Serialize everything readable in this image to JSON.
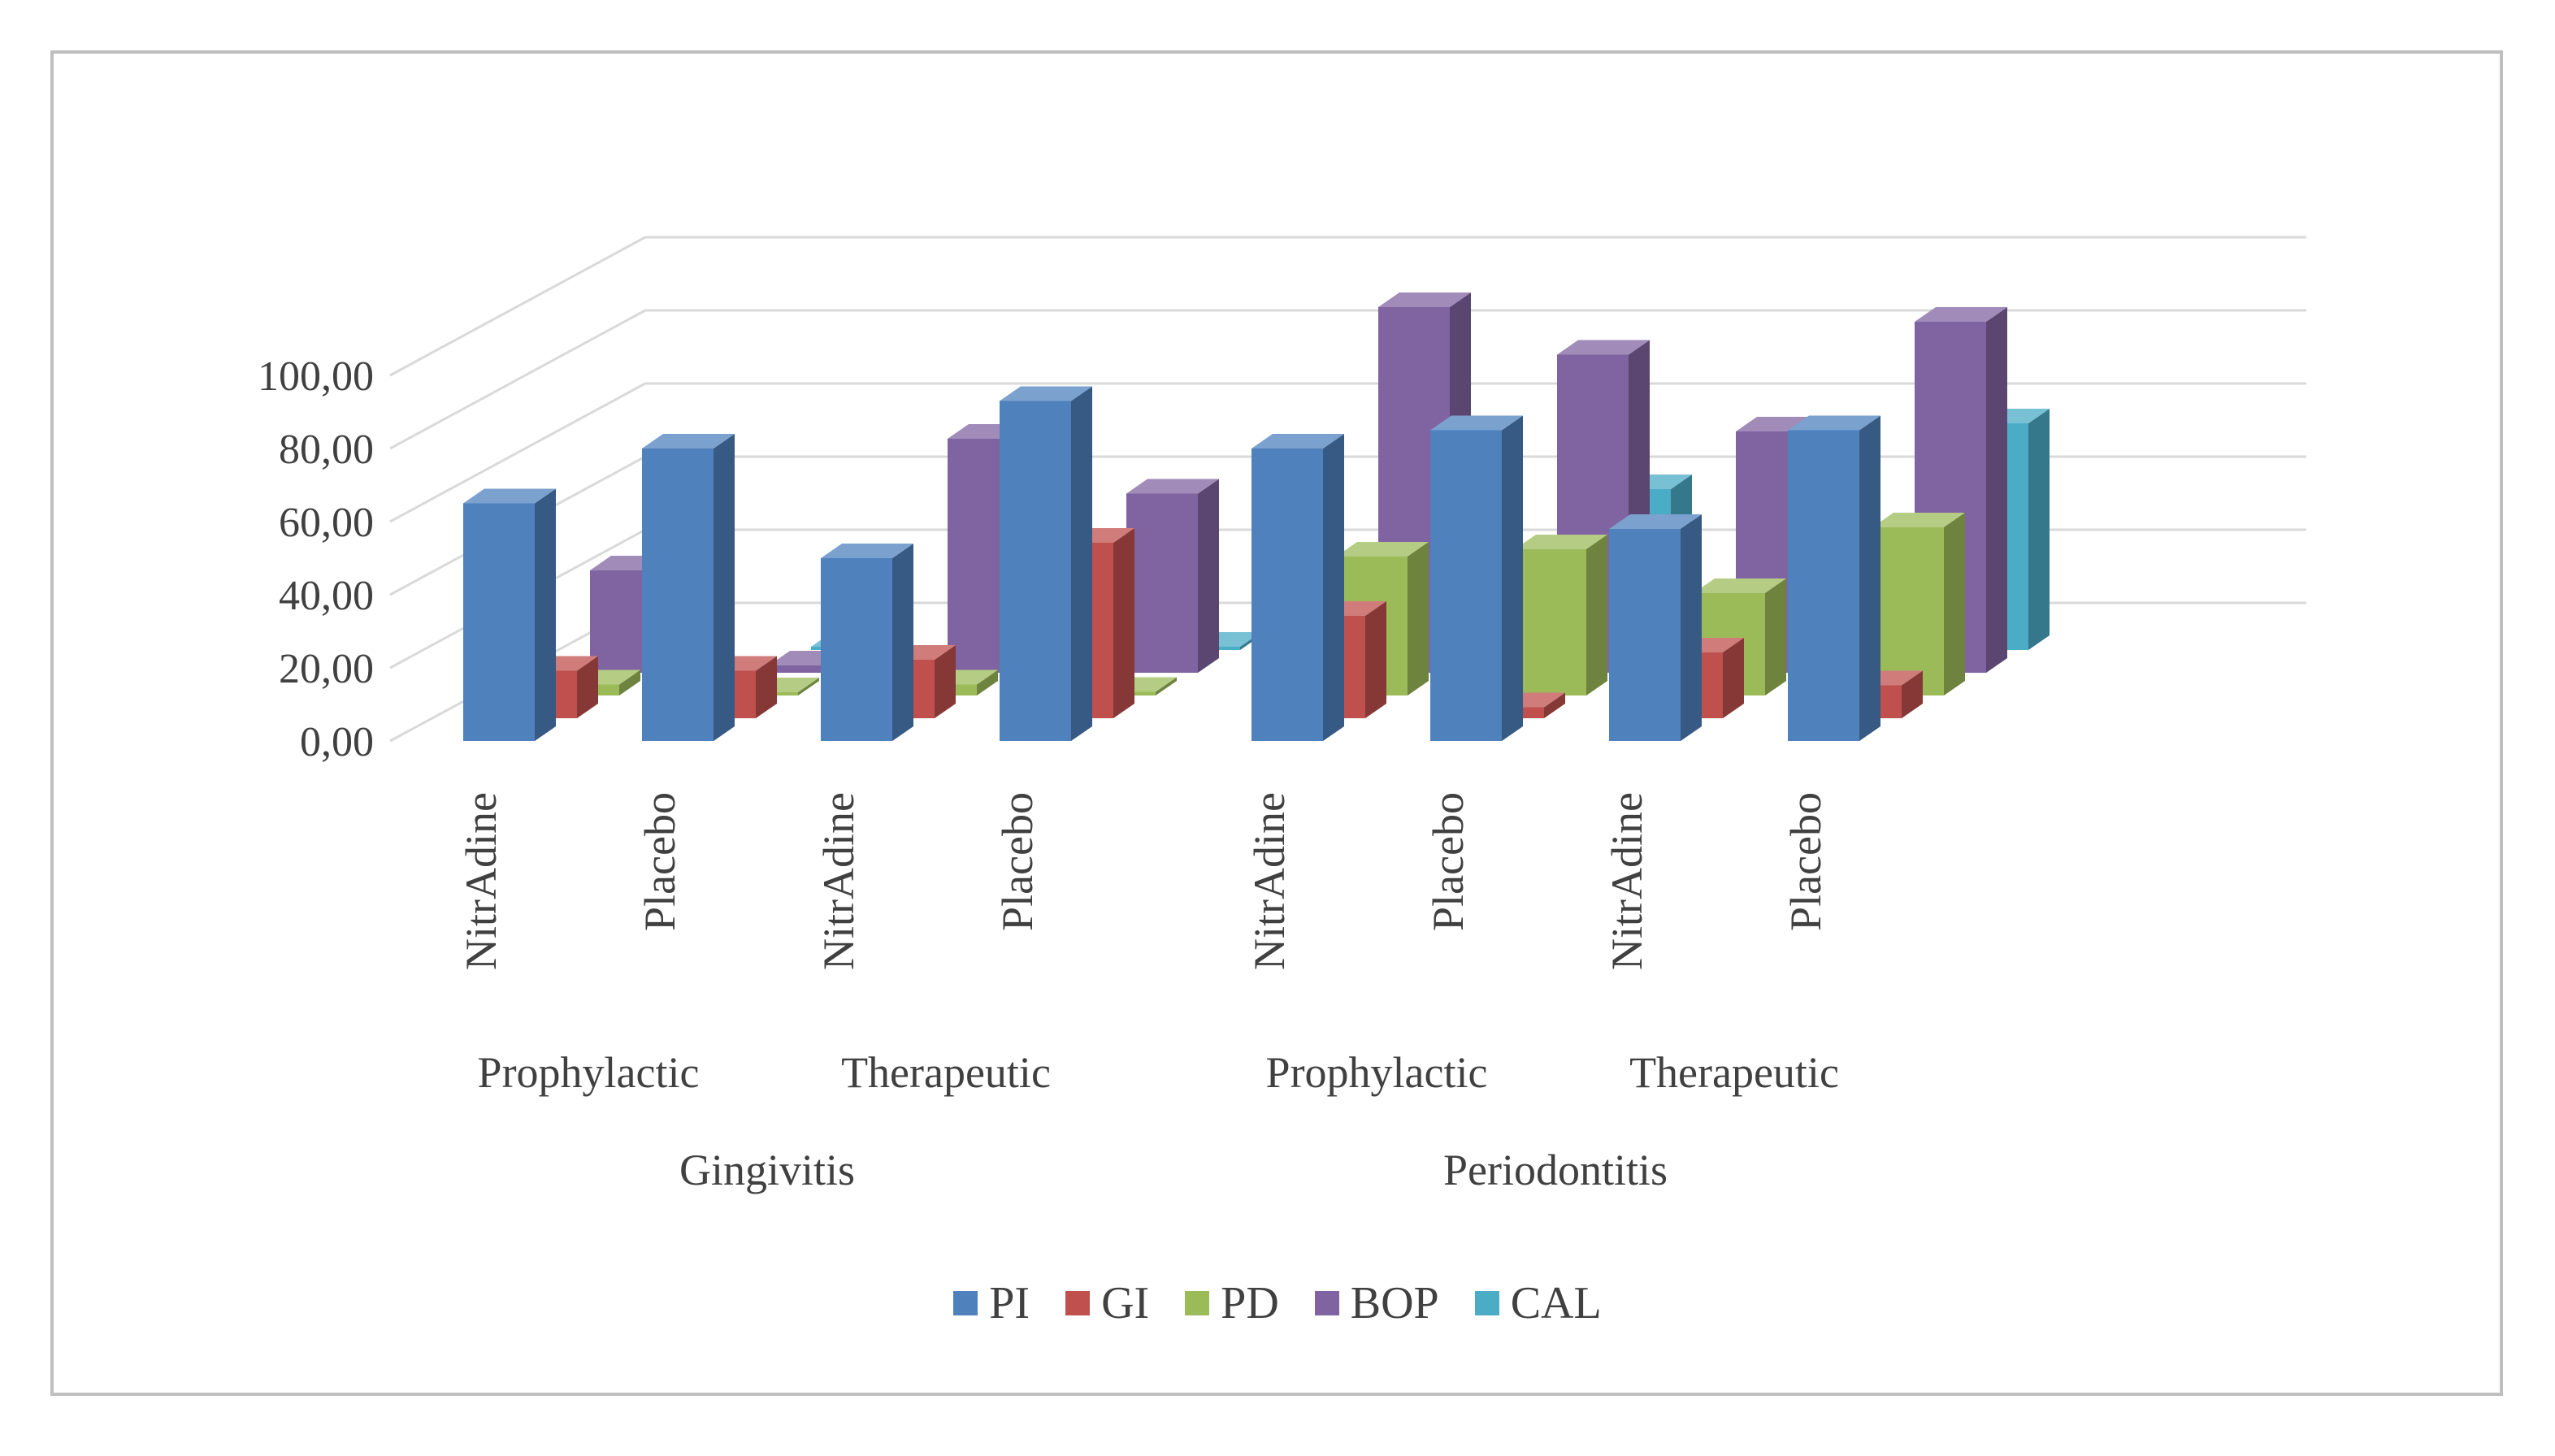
{
  "chart_data": {
    "type": "bar",
    "style": "3d-column",
    "title": "",
    "xlabel": "",
    "ylabel": "",
    "ylim": [
      0,
      100
    ],
    "yticks": [
      "0,00",
      "20,00",
      "40,00",
      "60,00",
      "80,00",
      "100,00"
    ],
    "grid": true,
    "legend_position": "bottom",
    "categories": [
      "NitrAdine",
      "Placebo",
      "NitrAdine",
      "Placebo",
      "NitrAdine",
      "Placebo",
      "NitrAdine",
      "Placebo"
    ],
    "subgroups": [
      {
        "label": "Prophylactic",
        "span": [
          0,
          1
        ]
      },
      {
        "label": "Therapeutic",
        "span": [
          2,
          3
        ]
      },
      {
        "label": "Prophylactic",
        "span": [
          4,
          5
        ]
      },
      {
        "label": "Therapeutic",
        "span": [
          6,
          7
        ]
      }
    ],
    "groups": [
      {
        "label": "Gingivitis",
        "span": [
          0,
          3
        ]
      },
      {
        "label": "Periodontitis",
        "span": [
          4,
          7
        ]
      }
    ],
    "series": [
      {
        "name": "PI",
        "color": "#4f81bd",
        "values": [
          65,
          80,
          50,
          93,
          80,
          85,
          58,
          85
        ]
      },
      {
        "name": "GI",
        "color": "#c0504d",
        "values": [
          13,
          13,
          16,
          48,
          28,
          3,
          18,
          9
        ]
      },
      {
        "name": "PD",
        "color": "#9bbb59",
        "values": [
          3,
          0,
          3,
          1,
          38,
          40,
          28,
          46
        ]
      },
      {
        "name": "BOP",
        "color": "#8064a2",
        "values": [
          28,
          2,
          64,
          49,
          100,
          87,
          66,
          96
        ]
      },
      {
        "name": "CAL",
        "color": "#4bacc6",
        "values": [
          6,
          0,
          0,
          0,
          28,
          44,
          23,
          62
        ]
      }
    ]
  }
}
